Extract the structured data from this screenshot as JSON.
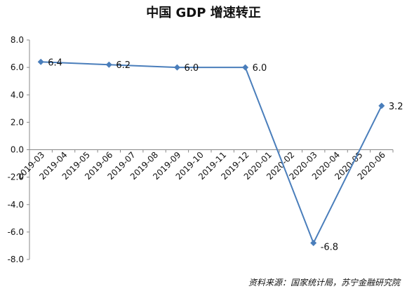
{
  "chart_data": {
    "type": "line",
    "title": "中国 GDP 增速转正",
    "source": "资料来源：国家统计局，苏宁金融研究院",
    "categories": [
      "2019-03",
      "2019-04",
      "2019-05",
      "2019-06",
      "2019-07",
      "2019-08",
      "2019-09",
      "2019-10",
      "2019-11",
      "2019-12",
      "2020-01",
      "2020-02",
      "2020-03",
      "2020-04",
      "2020-05",
      "2020-06"
    ],
    "points": [
      {
        "x": "2019-03",
        "y": 6.4,
        "label": "6.4"
      },
      {
        "x": "2019-06",
        "y": 6.2,
        "label": "6.2"
      },
      {
        "x": "2019-09",
        "y": 6.0,
        "label": "6.0"
      },
      {
        "x": "2019-12",
        "y": 6.0,
        "label": "6.0"
      },
      {
        "x": "2020-03",
        "y": -6.8,
        "label": "-6.8"
      },
      {
        "x": "2020-06",
        "y": 3.2,
        "label": "3.2"
      }
    ],
    "yticks": [
      "8.0",
      "6.0",
      "4.0",
      "2.0",
      "0.0",
      "-2.0",
      "-4.0",
      "-6.0",
      "-8.0"
    ],
    "ylim": [
      -8,
      8
    ],
    "ystep": 2,
    "grid": false,
    "legend": "none",
    "xlabel": "",
    "ylabel": "",
    "colors": {
      "line": "#4a7ebb",
      "axis": "#888888",
      "text": "#111111"
    }
  }
}
